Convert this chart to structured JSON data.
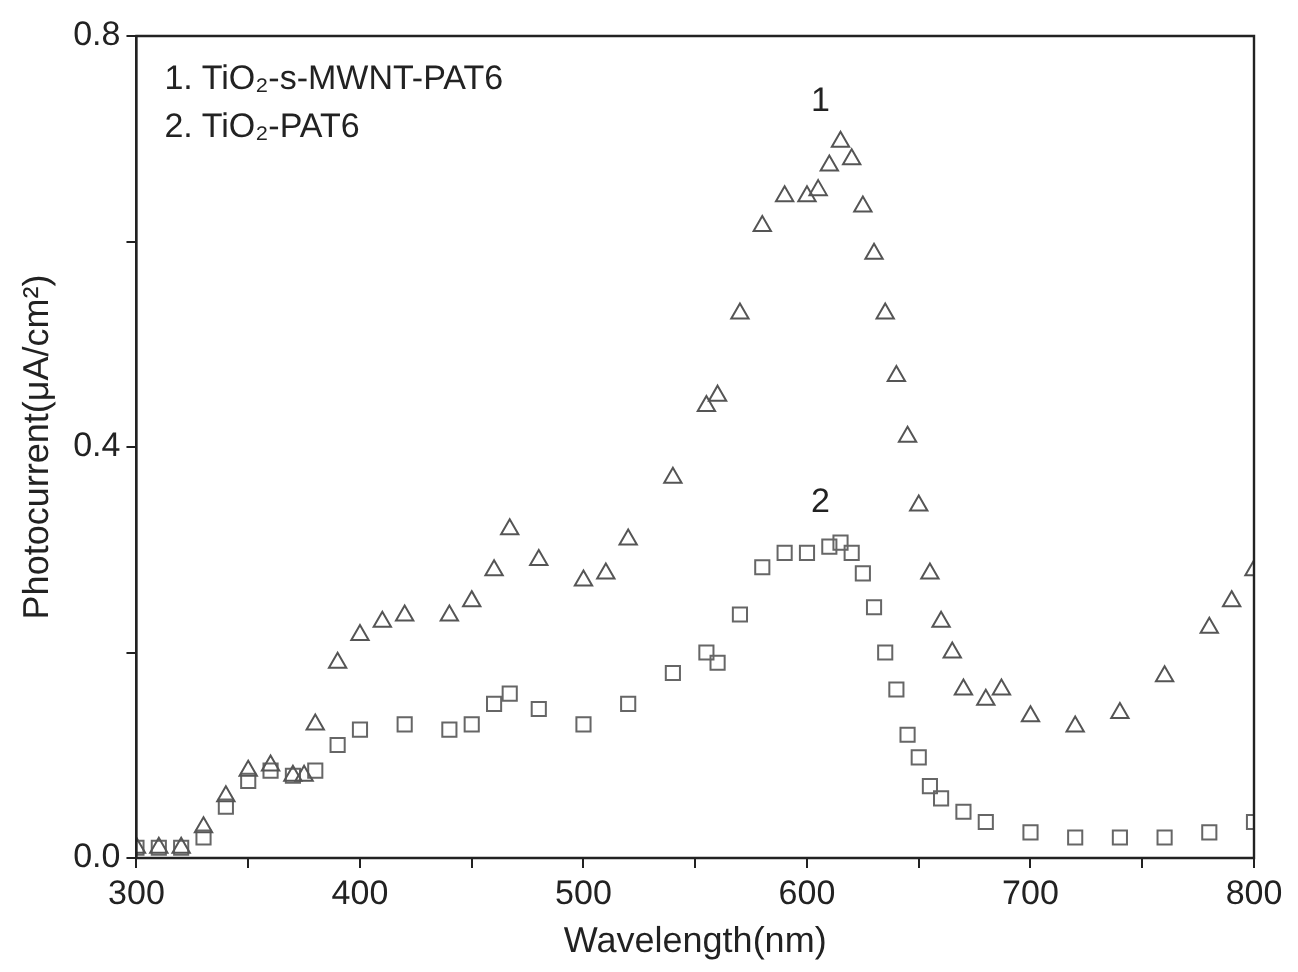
{
  "chart_data": {
    "type": "scatter",
    "xlabel": "Wavelength(nm)",
    "ylabel": "Photocurrent(μA/cm²)",
    "xlim": [
      300,
      800
    ],
    "ylim": [
      0,
      0.8
    ],
    "xticks": [
      300,
      {
        "value": 350,
        "label": null
      },
      400,
      {
        "value": 450,
        "label": null
      },
      500,
      {
        "value": 550,
        "label": null
      },
      600,
      {
        "value": 650,
        "label": null
      },
      700,
      {
        "value": 750,
        "label": null
      },
      800
    ],
    "yticks": [
      {
        "value": 0,
        "label": "0.0"
      },
      {
        "value": 0.2,
        "label": null
      },
      0.4,
      {
        "value": 0.6,
        "label": null
      },
      0.8
    ],
    "grid": false,
    "legend": false,
    "annotations": [
      "1. TiO₂-s-MWNT-PAT6",
      "2. TiO₂-PAT6"
    ],
    "series": [
      {
        "name": "1",
        "color": "#555555",
        "marker": "triangle",
        "x": [
          300,
          310,
          320,
          330,
          340,
          350,
          360,
          370,
          375,
          380,
          390,
          400,
          410,
          420,
          440,
          450,
          460,
          467,
          480,
          500,
          510,
          520,
          540,
          555,
          560,
          570,
          580,
          590,
          600,
          605,
          610,
          615,
          620,
          625,
          630,
          635,
          640,
          645,
          650,
          655,
          660,
          665,
          670,
          680,
          687,
          700,
          720,
          740,
          760,
          780,
          790,
          800
        ],
        "values": [
          0.01,
          0.01,
          0.01,
          0.03,
          0.06,
          0.085,
          0.09,
          0.08,
          0.08,
          0.13,
          0.19,
          0.217,
          0.23,
          0.236,
          0.236,
          0.25,
          0.28,
          0.32,
          0.29,
          0.27,
          0.277,
          0.31,
          0.37,
          0.44,
          0.45,
          0.53,
          0.615,
          0.644,
          0.644,
          0.65,
          0.674,
          0.697,
          0.68,
          0.634,
          0.588,
          0.53,
          0.469,
          0.41,
          0.343,
          0.277,
          0.23,
          0.2,
          0.164,
          0.154,
          0.164,
          0.138,
          0.128,
          0.141,
          0.177,
          0.224,
          0.25,
          0.28
        ]
      },
      {
        "name": "2",
        "color": "#666666",
        "marker": "square",
        "x": [
          300,
          310,
          320,
          330,
          340,
          350,
          360,
          370,
          380,
          390,
          400,
          420,
          440,
          450,
          460,
          467,
          480,
          500,
          520,
          540,
          555,
          560,
          570,
          580,
          590,
          600,
          610,
          615,
          620,
          625,
          630,
          635,
          640,
          645,
          650,
          655,
          660,
          670,
          680,
          700,
          720,
          740,
          760,
          780,
          800
        ],
        "values": [
          0.01,
          0.01,
          0.01,
          0.02,
          0.05,
          0.075,
          0.085,
          0.08,
          0.085,
          0.11,
          0.125,
          0.13,
          0.125,
          0.13,
          0.15,
          0.16,
          0.145,
          0.13,
          0.15,
          0.18,
          0.2,
          0.19,
          0.237,
          0.283,
          0.297,
          0.297,
          0.303,
          0.307,
          0.297,
          0.277,
          0.244,
          0.2,
          0.164,
          0.12,
          0.098,
          0.07,
          0.058,
          0.045,
          0.035,
          0.025,
          0.02,
          0.02,
          0.02,
          0.025,
          0.035
        ]
      }
    ]
  }
}
